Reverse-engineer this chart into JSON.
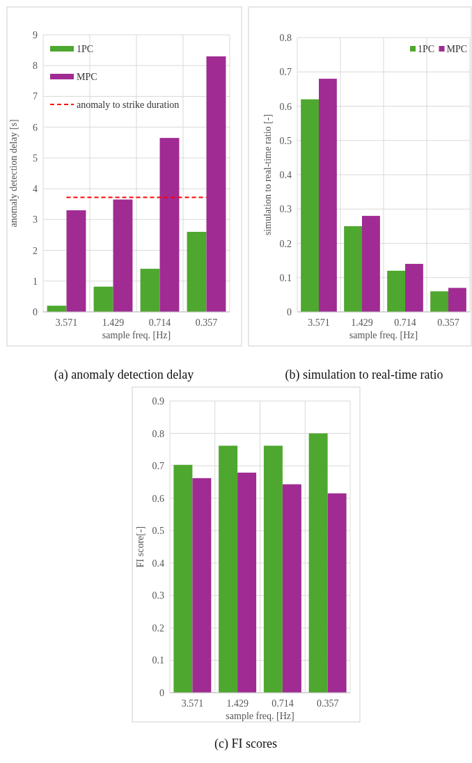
{
  "chart_data": [
    {
      "type": "bar",
      "title": "(a) anomaly detection delay",
      "xlabel": "sample freq. [Hz]",
      "ylabel": "anomaly detection delay [s]",
      "categories": [
        "3.571",
        "1.429",
        "0.714",
        "0.357"
      ],
      "series": [
        {
          "name": "1PC",
          "color": "#4ea72e",
          "values": [
            0.2,
            0.82,
            1.4,
            2.6
          ]
        },
        {
          "name": "MPC",
          "color": "#a02b93",
          "values": [
            3.3,
            3.65,
            5.65,
            8.3
          ]
        }
      ],
      "ylim": [
        0,
        9
      ],
      "yticks": [
        0,
        1,
        2,
        3,
        4,
        5,
        6,
        7,
        8,
        9
      ],
      "grid": true,
      "legend": "top left",
      "ref_lines": [
        {
          "axis": "y",
          "value": 3.72,
          "label": "anomaly to strike duration",
          "color": "#ff0000",
          "line_style": "dashed"
        }
      ]
    },
    {
      "type": "bar",
      "title": "(b) simulation to real-time ratio",
      "xlabel": "sample freq. [Hz]",
      "ylabel": "simulation to real-time ratio [-]",
      "categories": [
        "3.571",
        "1.429",
        "0.714",
        "0.357"
      ],
      "series": [
        {
          "name": "1PC",
          "color": "#4ea72e",
          "values": [
            0.62,
            0.25,
            0.12,
            0.06
          ]
        },
        {
          "name": "MPC",
          "color": "#a02b93",
          "values": [
            0.68,
            0.28,
            0.14,
            0.07
          ]
        }
      ],
      "ylim": [
        0,
        0.8
      ],
      "yticks": [
        0,
        0.1,
        0.2,
        0.3,
        0.4,
        0.5,
        0.6,
        0.7,
        0.8
      ],
      "grid": true,
      "legend": "top right"
    },
    {
      "type": "bar",
      "title": "(c) FI scores",
      "xlabel": "sample freq. [Hz]",
      "ylabel": "FI score[-]",
      "categories": [
        "3.571",
        "1.429",
        "0.714",
        "0.357"
      ],
      "series": [
        {
          "color": "#4ea72e",
          "values": [
            0.703,
            0.762,
            0.762,
            0.8
          ]
        },
        {
          "color": "#a02b93",
          "values": [
            0.662,
            0.679,
            0.643,
            0.615
          ]
        }
      ],
      "ylim": [
        0,
        0.9
      ],
      "yticks": [
        0,
        0.1,
        0.2,
        0.3,
        0.4,
        0.5,
        0.6,
        0.7,
        0.8,
        0.9
      ],
      "grid": true
    }
  ]
}
